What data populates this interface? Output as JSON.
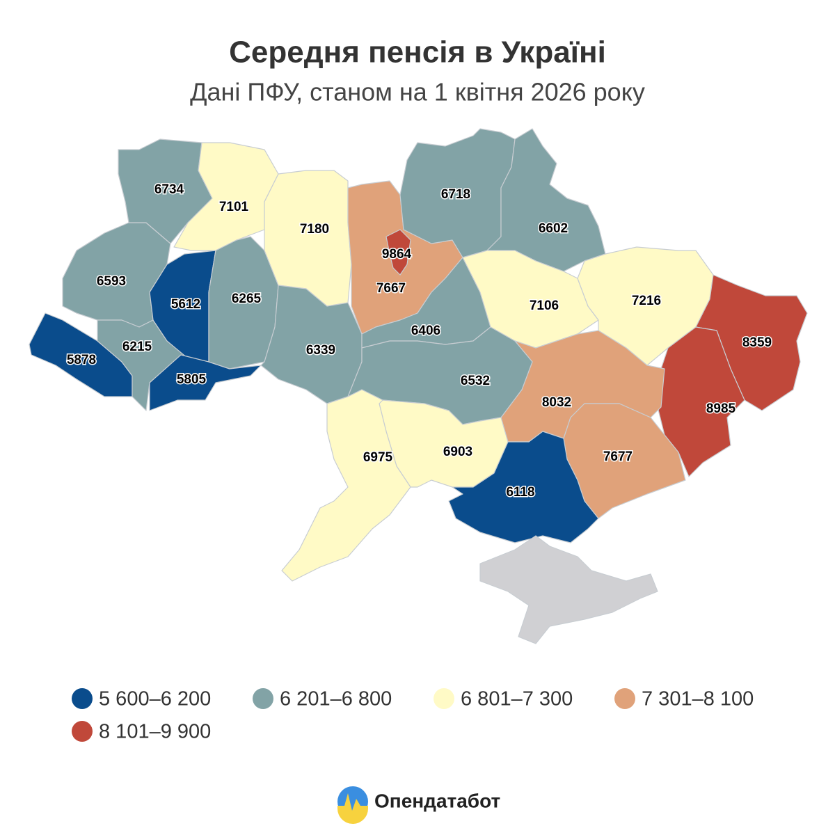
{
  "title": "Середня пенсія в Україні",
  "subtitle": "Дані ПФУ, станом на 1 квітня 2026 року",
  "regions": [
    {
      "value": 6734,
      "color": "#82a3a6"
    },
    {
      "value": 7101,
      "color": "#fffac6"
    },
    {
      "value": 7180,
      "color": "#fffac6"
    },
    {
      "value": 9864,
      "color": "#c0483a"
    },
    {
      "value": 7667,
      "color": "#e0a27a"
    },
    {
      "value": 6718,
      "color": "#82a3a6"
    },
    {
      "value": 6602,
      "color": "#82a3a6"
    },
    {
      "value": 6593,
      "color": "#82a3a6"
    },
    {
      "value": 5612,
      "color": "#0a4c8c"
    },
    {
      "value": 6265,
      "color": "#82a3a6"
    },
    {
      "value": 6406,
      "color": "#82a3a6"
    },
    {
      "value": 7106,
      "color": "#fffac6"
    },
    {
      "value": 7216,
      "color": "#fffac6"
    },
    {
      "value": 8359,
      "color": "#c0483a"
    },
    {
      "value": 5878,
      "color": "#0a4c8c"
    },
    {
      "value": 6215,
      "color": "#82a3a6"
    },
    {
      "value": 6339,
      "color": "#82a3a6"
    },
    {
      "value": 6532,
      "color": "#82a3a6"
    },
    {
      "value": 5805,
      "color": "#0a4c8c"
    },
    {
      "value": 8032,
      "color": "#e0a27a"
    },
    {
      "value": 8985,
      "color": "#c0483a"
    },
    {
      "value": 6975,
      "color": "#fffac6"
    },
    {
      "value": 6903,
      "color": "#fffac6"
    },
    {
      "value": 7677,
      "color": "#e0a27a"
    },
    {
      "value": 6118,
      "color": "#0a4c8c"
    }
  ],
  "legend": [
    {
      "label": "5 600–6 200",
      "color": "#0a4c8c"
    },
    {
      "label": "6 201–6 800",
      "color": "#82a3a6"
    },
    {
      "label": "6 801–7 300",
      "color": "#fffac6"
    },
    {
      "label": "7 301–8 100",
      "color": "#e0a27a"
    },
    {
      "label": "8 101–9 900",
      "color": "#c0483a"
    }
  ],
  "brand": "Опендатабот"
}
